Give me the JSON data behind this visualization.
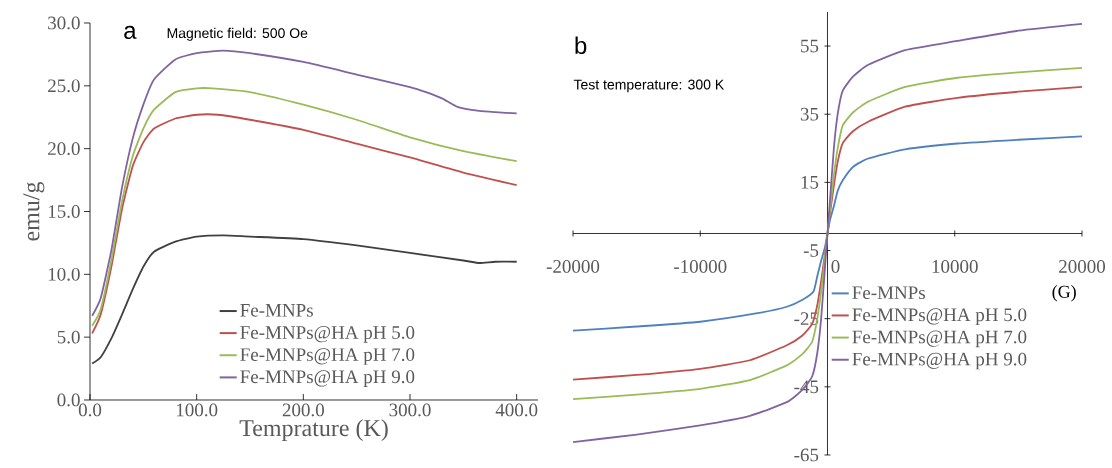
{
  "chart_data": [
    {
      "type": "line",
      "xlabel": "Temprature (K)",
      "ylabel": "emu/g",
      "annotations": [
        "a",
        "Magnetic field: 500 Oe"
      ],
      "xlim": [
        0,
        420
      ],
      "ylim": [
        0,
        30
      ],
      "xticks": [
        {
          "value": 0,
          "label": "0.0"
        },
        {
          "value": 100,
          "label": "100.0"
        },
        {
          "value": 200,
          "label": "200.0"
        },
        {
          "value": 300,
          "label": "300.0"
        },
        {
          "value": 400,
          "label": "400.0"
        }
      ],
      "yticks": [
        {
          "value": 0,
          "label": "0.0"
        },
        {
          "value": 5,
          "label": "5.0"
        },
        {
          "value": 10,
          "label": "10.0"
        },
        {
          "value": 15,
          "label": "15.0"
        },
        {
          "value": 20,
          "label": "20.0"
        },
        {
          "value": 25,
          "label": "25.0"
        },
        {
          "value": 30,
          "label": "30.0"
        }
      ],
      "legend": "bottom right",
      "series": [
        {
          "name": "Fe-MNPs",
          "color": "#404040",
          "x": [
            2,
            10,
            20,
            30,
            40,
            50,
            60,
            80,
            100,
            125,
            150,
            200,
            250,
            300,
            350,
            365,
            380,
            400
          ],
          "values": [
            2.9,
            3.4,
            4.9,
            6.8,
            8.8,
            10.6,
            11.8,
            12.6,
            13.0,
            13.1,
            13.0,
            12.8,
            12.3,
            11.7,
            11.1,
            10.9,
            11.0,
            11.0
          ]
        },
        {
          "name": "Fe-MNPs@HA pH 5.0",
          "color": "#c0504d",
          "x": [
            2,
            10,
            20,
            30,
            40,
            50,
            60,
            80,
            100,
            120,
            150,
            200,
            250,
            300,
            350,
            400
          ],
          "values": [
            5.3,
            6.8,
            10.6,
            15.2,
            18.6,
            20.5,
            21.6,
            22.4,
            22.7,
            22.7,
            22.3,
            21.5,
            20.4,
            19.3,
            18.1,
            17.1
          ]
        },
        {
          "name": "Fe-MNPs@HA pH 7.0",
          "color": "#9bbb59",
          "x": [
            2,
            10,
            20,
            30,
            40,
            50,
            60,
            80,
            100,
            115,
            150,
            200,
            250,
            300,
            350,
            400
          ],
          "values": [
            5.9,
            7.2,
            11.1,
            15.8,
            19.4,
            21.6,
            23.1,
            24.5,
            24.8,
            24.8,
            24.5,
            23.5,
            22.3,
            20.9,
            19.8,
            19.0
          ]
        },
        {
          "name": "Fe-MNPs@HA pH 9.0",
          "color": "#8064a2",
          "x": [
            2,
            10,
            20,
            30,
            40,
            50,
            60,
            80,
            100,
            125,
            150,
            200,
            250,
            300,
            315,
            330,
            345,
            365,
            380,
            400
          ],
          "values": [
            6.7,
            8.1,
            11.9,
            16.9,
            20.8,
            23.5,
            25.5,
            27.1,
            27.6,
            27.8,
            27.6,
            26.9,
            25.9,
            24.9,
            24.5,
            24.0,
            23.3,
            23.0,
            22.9,
            22.8
          ]
        }
      ]
    },
    {
      "type": "line",
      "xlabel": "(G)",
      "annotations": [
        "b",
        "Test temperature: 300 K"
      ],
      "xlim": [
        -20000,
        20000
      ],
      "ylim": [
        -65,
        65
      ],
      "xticks": [
        -20000,
        -10000,
        0,
        10000,
        20000
      ],
      "yticks": [
        -65,
        -45,
        -25,
        -5,
        15,
        35,
        55
      ],
      "legend": "bottom right",
      "series": [
        {
          "name": "Fe-MNPs",
          "color": "#4f81bd",
          "x": [
            -20000,
            -15000,
            -10000,
            -5500,
            -3200,
            -2000,
            -1100,
            -800,
            -500,
            -200,
            0,
            200,
            500,
            800,
            1200,
            2000,
            3200,
            6100,
            10200,
            15000,
            20000
          ],
          "values": [
            -28.5,
            -27.3,
            -25.9,
            -23.4,
            -21.5,
            -19.5,
            -17.0,
            -12.5,
            -8.0,
            -4.0,
            0,
            4.0,
            8.0,
            12.5,
            15.6,
            19.5,
            22.0,
            24.7,
            26.4,
            27.5,
            28.5
          ]
        },
        {
          "name": "Fe-MNPs@HA pH 5.0",
          "color": "#c0504d",
          "x": [
            -20000,
            -15000,
            -10000,
            -6100,
            -3200,
            -2000,
            -1200,
            -800,
            -500,
            -200,
            0,
            200,
            500,
            800,
            1200,
            2000,
            3200,
            6100,
            10200,
            15000,
            20000
          ],
          "values": [
            -42.9,
            -41.5,
            -39.7,
            -37.2,
            -32.8,
            -30.0,
            -26.5,
            -21.0,
            -14.0,
            -6.0,
            0,
            6.0,
            14.0,
            21.0,
            26.5,
            30.0,
            32.8,
            37.2,
            39.8,
            41.6,
            43.0
          ]
        },
        {
          "name": "Fe-MNPs@HA pH 7.0",
          "color": "#9bbb59",
          "x": [
            -20000,
            -15000,
            -10000,
            -6100,
            -3200,
            -2000,
            -1200,
            -800,
            -500,
            -200,
            0,
            200,
            500,
            800,
            1200,
            2000,
            3200,
            6100,
            10200,
            15000,
            20000
          ],
          "values": [
            -48.6,
            -47.3,
            -45.6,
            -43.0,
            -38.7,
            -35.5,
            -31.7,
            -25.0,
            -17.0,
            -7.0,
            0,
            7.0,
            17.0,
            25.0,
            31.7,
            35.5,
            38.7,
            43.0,
            45.7,
            47.3,
            48.6
          ]
        },
        {
          "name": "Fe-MNPs@HA pH 9.0",
          "color": "#8064a2",
          "x": [
            -20000,
            -15000,
            -10000,
            -6100,
            -3200,
            -2000,
            -1200,
            -800,
            -500,
            -200,
            0,
            200,
            500,
            800,
            1200,
            2000,
            3200,
            6100,
            10200,
            15000,
            20000
          ],
          "values": [
            -61.2,
            -59.0,
            -56.3,
            -53.5,
            -49.5,
            -46.0,
            -41.9,
            -35.0,
            -25.0,
            -10.0,
            0,
            10.0,
            25.0,
            35.0,
            41.9,
            46.0,
            49.5,
            53.8,
            56.5,
            59.5,
            61.5
          ]
        }
      ]
    }
  ]
}
